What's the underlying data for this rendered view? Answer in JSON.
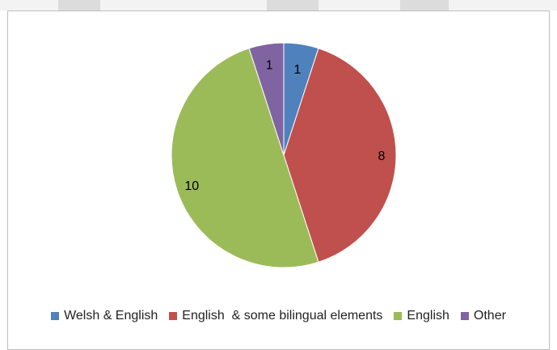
{
  "chart_data": {
    "type": "pie",
    "categories": [
      "Welsh & English",
      "English  & some bilingual elements",
      "English",
      "Other"
    ],
    "values": [
      1,
      8,
      10,
      1
    ],
    "colors": [
      "#4f81bd",
      "#c0504d",
      "#9bbb59",
      "#8064a2"
    ],
    "data_labels": [
      "1",
      "8",
      "10",
      "1"
    ],
    "start_angle_deg": 0,
    "direction": "clockwise",
    "legend_position": "bottom",
    "title": ""
  }
}
